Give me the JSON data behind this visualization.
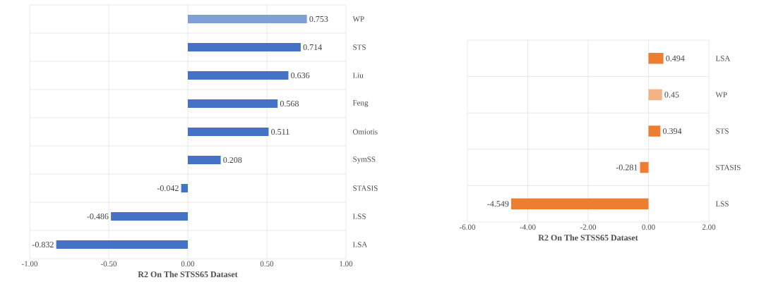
{
  "chart_data": [
    {
      "type": "bar",
      "orientation": "horizontal",
      "xlabel": "R2 On The STSS65 Dataset",
      "categories": [
        "WP",
        "STS",
        "Liu",
        "Feng",
        "Omiotis",
        "SymSS",
        "STASIS",
        "LSS",
        "LSA"
      ],
      "values": [
        0.753,
        0.714,
        0.636,
        0.568,
        0.511,
        0.208,
        -0.042,
        -0.486,
        -0.832
      ],
      "colors": [
        "#7f9fd6",
        "#4472c4",
        "#4472c4",
        "#4472c4",
        "#4472c4",
        "#4472c4",
        "#4472c4",
        "#4472c4",
        "#4472c4"
      ],
      "xlim": [
        -1,
        1
      ],
      "xticks": [
        {
          "value": -1,
          "label": "-1.00"
        },
        {
          "value": -0.5,
          "label": "-0.50"
        },
        {
          "value": 0,
          "label": "0.00"
        },
        {
          "value": 0.5,
          "label": "0.50"
        },
        {
          "value": 1,
          "label": "1.00"
        }
      ],
      "grid": true,
      "data_labels": true
    },
    {
      "type": "bar",
      "orientation": "horizontal",
      "xlabel": "R2 On The STSS65 Dataset",
      "categories": [
        "LSA",
        "WP",
        "STS",
        "STASIS",
        "LSS"
      ],
      "values": [
        0.494,
        0.45,
        0.394,
        -0.281,
        -4.549
      ],
      "colors": [
        "#ed7d31",
        "#f4b183",
        "#ed7d31",
        "#ed7d31",
        "#ed7d31"
      ],
      "xlim": [
        -6,
        2
      ],
      "xticks": [
        {
          "value": -6,
          "label": "-6.00"
        },
        {
          "value": -4,
          "label": "-4.00"
        },
        {
          "value": -2,
          "label": "-2.00"
        },
        {
          "value": 0,
          "label": "0.00"
        },
        {
          "value": 2,
          "label": "2.00"
        }
      ],
      "grid": true,
      "data_labels": true
    }
  ]
}
